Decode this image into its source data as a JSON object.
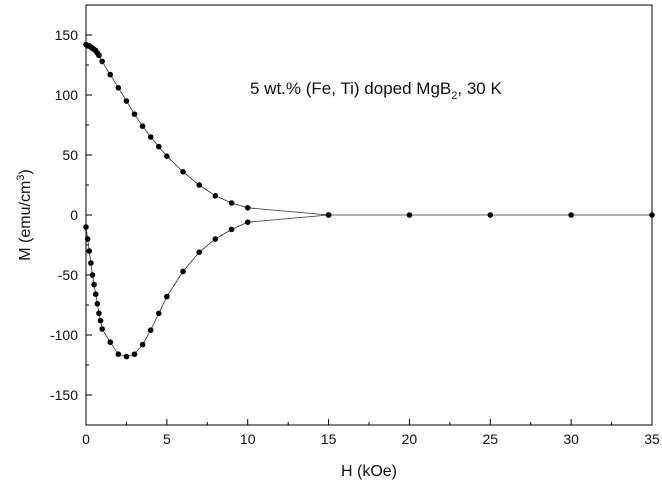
{
  "chart_data": {
    "type": "line",
    "xlabel": "H (kOe)",
    "ylabel": {
      "main": "M (emu/cm",
      "sup": "3",
      "close": ")"
    },
    "annotation": {
      "pre": "5 wt.% (Fe, Ti) doped MgB",
      "sub": "2",
      "post": ", 30 K"
    },
    "xlim": [
      0,
      35
    ],
    "ylim": [
      -175,
      175
    ],
    "xticks": [
      0,
      5,
      10,
      15,
      20,
      25,
      30,
      35
    ],
    "yticks": [
      -150,
      -100,
      -50,
      0,
      50,
      100,
      150
    ],
    "grid": false,
    "marker": "filled-circle",
    "series": [
      {
        "branch": "upper",
        "x": [
          0,
          0.1,
          0.2,
          0.3,
          0.4,
          0.5,
          0.6,
          0.7,
          0.8,
          1.0,
          1.5,
          2.0,
          2.5,
          3.0,
          3.5,
          4.0,
          4.5,
          5.0,
          6.0,
          7.0,
          8.0,
          9.0,
          10.0,
          15.0,
          20.0,
          25.0,
          30.0,
          35.0
        ],
        "y": [
          142,
          141,
          141,
          140,
          139,
          138,
          137,
          135,
          133,
          128,
          117,
          106,
          95,
          84,
          74,
          65,
          57,
          49,
          36,
          25,
          16,
          10,
          6,
          0,
          0,
          0,
          0,
          0
        ]
      },
      {
        "branch": "lower",
        "x": [
          0,
          0.1,
          0.2,
          0.3,
          0.4,
          0.5,
          0.6,
          0.7,
          0.8,
          0.9,
          1.0,
          1.5,
          2.0,
          2.5,
          3.0,
          3.5,
          4.0,
          4.5,
          5.0,
          6.0,
          7.0,
          8.0,
          9.0,
          10.0,
          15.0
        ],
        "y": [
          -10,
          -20,
          -30,
          -40,
          -50,
          -58,
          -66,
          -74,
          -82,
          -88,
          -95,
          -106,
          -116,
          -118,
          -116,
          -108,
          -96,
          -82,
          -68,
          -47,
          -31,
          -20,
          -12,
          -6,
          0
        ]
      }
    ]
  }
}
